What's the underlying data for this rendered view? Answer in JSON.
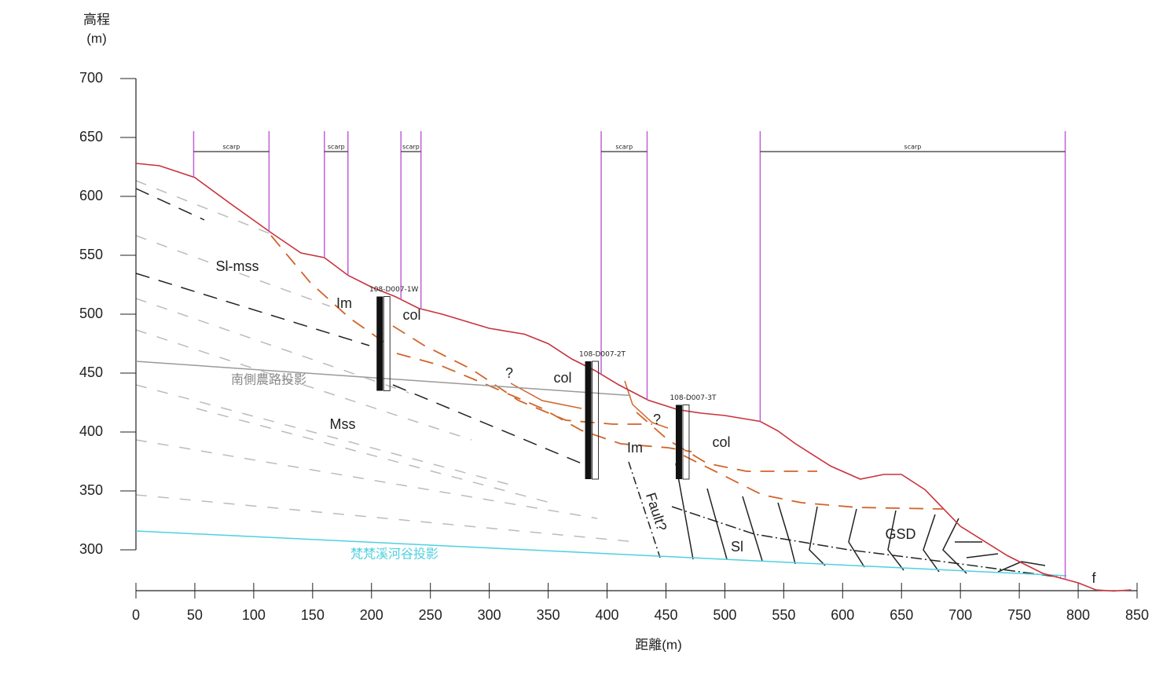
{
  "chart_data": {
    "type": "line",
    "y_label_line1": "高程",
    "y_label_line2": "(m)",
    "x_label": "距離(m)",
    "xlim": [
      0,
      850
    ],
    "ylim": [
      270,
      700
    ],
    "xticks": [
      0,
      50,
      100,
      150,
      200,
      250,
      300,
      350,
      400,
      450,
      500,
      550,
      600,
      650,
      700,
      750,
      800,
      850
    ],
    "yticks": [
      300,
      350,
      400,
      450,
      500,
      550,
      600,
      650,
      700
    ],
    "color": "#c8323c",
    "x": [
      0,
      20,
      50,
      80,
      115,
      140,
      160,
      180,
      200,
      220,
      240,
      260,
      280,
      300,
      330,
      350,
      370,
      390,
      410,
      435,
      460,
      480,
      500,
      530,
      545,
      560,
      590,
      615,
      635,
      650,
      670,
      700,
      740,
      770,
      800,
      815,
      830,
      845
    ],
    "values": [
      628,
      626,
      616,
      594,
      569,
      552,
      548,
      533,
      523,
      515,
      505,
      500,
      494,
      488,
      483,
      475,
      462,
      452,
      440,
      427,
      419,
      416,
      414,
      409,
      401,
      390,
      371,
      360,
      364,
      364,
      351,
      320,
      295,
      280,
      272,
      266,
      265,
      266
    ],
    "lines": [
      {
        "label": "南側農路投影",
        "color": "#9a9a9a",
        "x": [
          0,
          420
        ],
        "values": [
          460,
          431
        ]
      },
      {
        "label": "梵梵溪河谷投影",
        "color": "#4fd0e0",
        "x": [
          0,
          790
        ],
        "values": [
          316,
          278
        ]
      }
    ],
    "scarps": [
      {
        "label": "scarp",
        "start": 49,
        "end": 113
      },
      {
        "label": "scarp",
        "start": 160,
        "end": 180
      },
      {
        "label": "scarp",
        "start": 225,
        "end": 242
      },
      {
        "label": "scarp",
        "start": 395,
        "end": 434
      },
      {
        "label": "scarp",
        "start": 530,
        "end": 789
      }
    ],
    "boreholes": [
      {
        "name": "108-D007-1W",
        "x": 207,
        "top": 515,
        "bottom": 435
      },
      {
        "name": "108-D007-2T",
        "x": 384,
        "top": 460,
        "bottom": 360
      },
      {
        "name": "108-D007-3T",
        "x": 461,
        "top": 423,
        "bottom": 360
      }
    ],
    "labels": [
      "Sl-mss",
      "Im",
      "col",
      "Mss",
      "?",
      "col",
      "?",
      "Im",
      "col",
      "Fault?",
      "Sl",
      "GSD",
      "f"
    ]
  }
}
